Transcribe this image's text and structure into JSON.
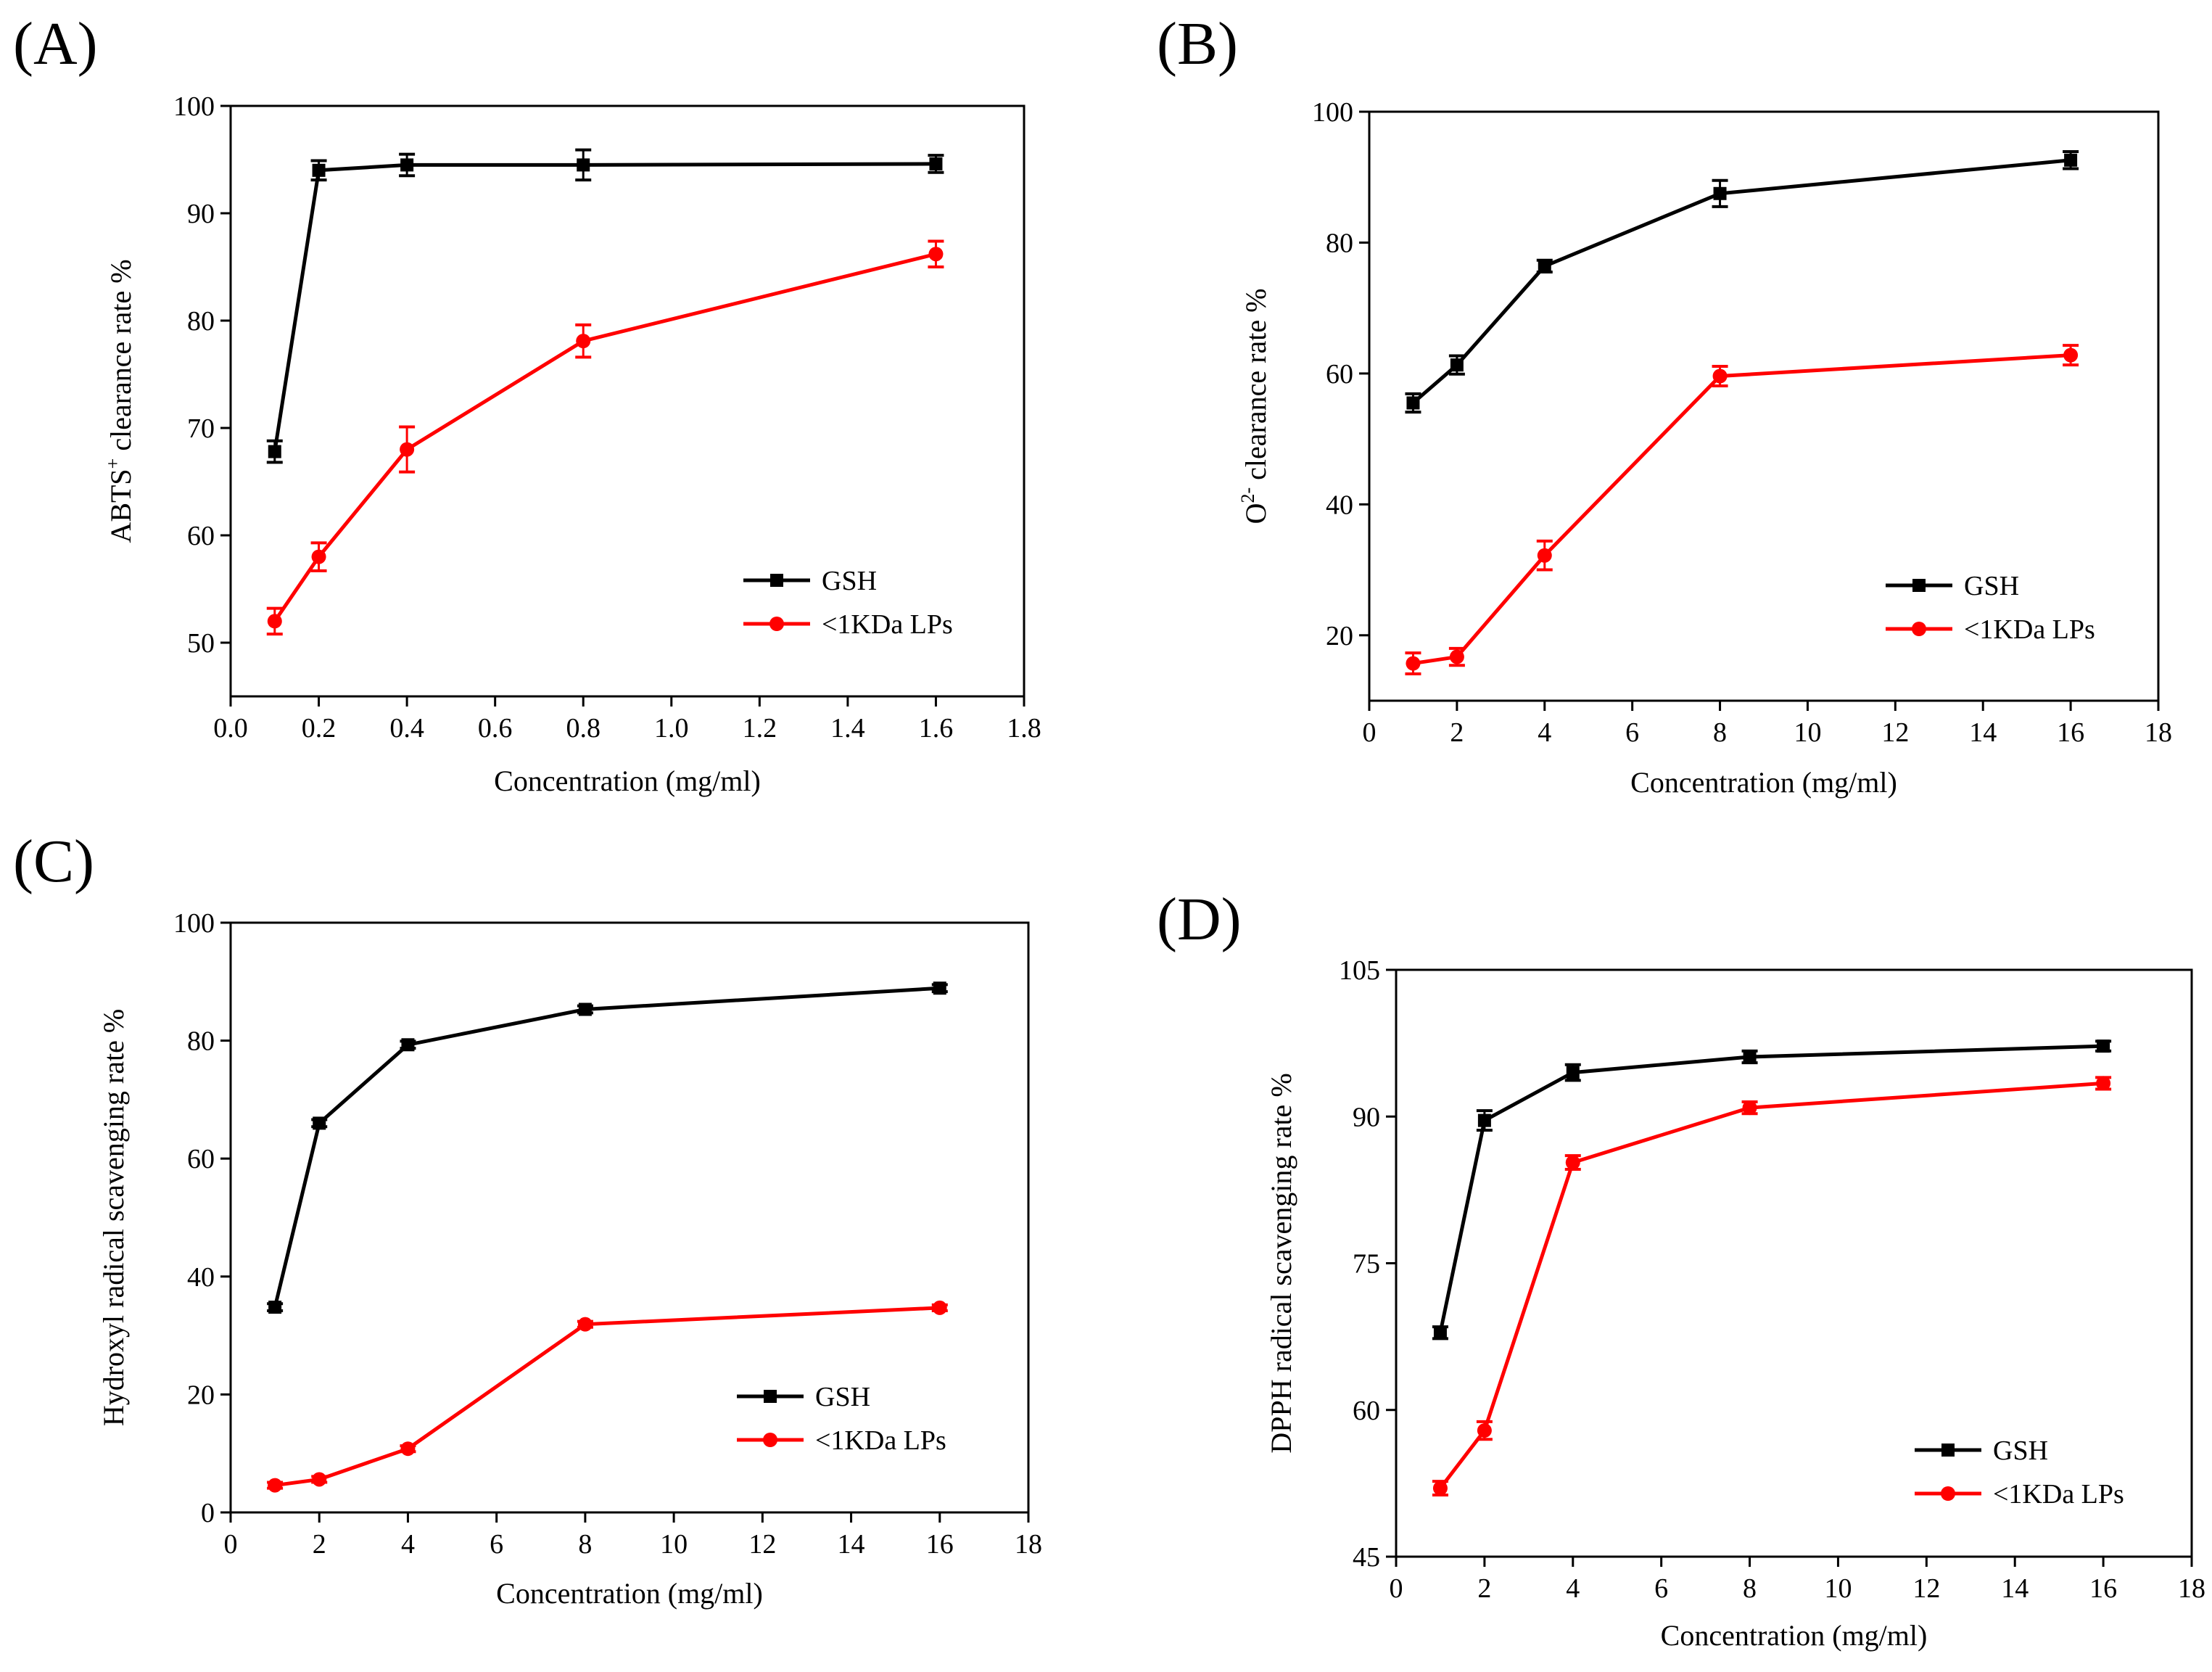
{
  "figure": {
    "colors": {
      "GSH": "#000000",
      "LPs": "#ff0000"
    }
  },
  "chart_data": [
    {
      "id": "A",
      "type": "line",
      "panel_label": "(A)",
      "xlabel": "Concentration (mg/ml)",
      "ylabel_main": "ABTS",
      "ylabel_sup": "+",
      "ylabel_rest": " clearance rate %",
      "xlim": [
        0,
        1.8
      ],
      "ylim": [
        45,
        100
      ],
      "xticks": [
        0,
        0.2,
        0.4,
        0.6,
        0.8,
        1.0,
        1.2,
        1.4,
        1.6,
        1.8
      ],
      "xtick_labels": [
        "0.0",
        "0.2",
        "0.4",
        "0.6",
        "0.8",
        "1.0",
        "1.2",
        "1.4",
        "1.6",
        "1.8"
      ],
      "yticks": [
        50,
        60,
        70,
        80,
        90,
        100
      ],
      "ytick_labels": [
        "50",
        "60",
        "70",
        "80",
        "90",
        "100"
      ],
      "x": [
        0.1,
        0.2,
        0.4,
        0.8,
        1.6
      ],
      "series": [
        {
          "name": "GSH",
          "key": "GSH",
          "values": [
            67.8,
            94.0,
            94.5,
            94.5,
            94.6
          ],
          "errors": [
            1.0,
            0.9,
            1.0,
            1.4,
            0.8
          ]
        },
        {
          "name": "<1KDa LPs",
          "key": "LPs",
          "values": [
            52.0,
            58.0,
            68.0,
            78.1,
            86.2
          ],
          "errors": [
            1.2,
            1.3,
            2.1,
            1.5,
            1.2
          ]
        }
      ]
    },
    {
      "id": "B",
      "type": "line",
      "panel_label": "(B)",
      "xlabel": "Concentration (mg/ml)",
      "ylabel_main": "O",
      "ylabel_sup": "2-",
      "ylabel_rest": " clearance rate %",
      "xlim": [
        0,
        18
      ],
      "ylim": [
        10,
        100
      ],
      "xticks": [
        0,
        2,
        4,
        6,
        8,
        10,
        12,
        14,
        16,
        18
      ],
      "xtick_labels": [
        "0",
        "2",
        "4",
        "6",
        "8",
        "10",
        "12",
        "14",
        "16",
        "18"
      ],
      "yticks": [
        20,
        40,
        60,
        80,
        100
      ],
      "ytick_labels": [
        "20",
        "40",
        "60",
        "80",
        "100"
      ],
      "x": [
        1,
        2,
        4,
        8,
        16
      ],
      "series": [
        {
          "name": "GSH",
          "key": "GSH",
          "values": [
            55.5,
            61.3,
            76.4,
            87.5,
            92.6
          ],
          "errors": [
            1.4,
            1.4,
            0.9,
            2.0,
            1.3
          ]
        },
        {
          "name": "<1KDa LPs",
          "key": "LPs",
          "values": [
            15.7,
            16.7,
            32.2,
            59.6,
            62.8
          ],
          "errors": [
            1.6,
            1.3,
            2.2,
            1.5,
            1.5
          ]
        }
      ]
    },
    {
      "id": "C",
      "type": "line",
      "panel_label": "(C)",
      "xlabel": "Concentration (mg/ml)",
      "ylabel_main": "Hydroxyl radical scavenging rate %",
      "ylabel_sup": "",
      "ylabel_rest": "",
      "xlim": [
        0,
        18
      ],
      "ylim": [
        0,
        100
      ],
      "xticks": [
        0,
        2,
        4,
        6,
        8,
        10,
        12,
        14,
        16,
        18
      ],
      "xtick_labels": [
        "0",
        "2",
        "4",
        "6",
        "8",
        "10",
        "12",
        "14",
        "16",
        "18"
      ],
      "yticks": [
        0,
        20,
        40,
        60,
        80,
        100
      ],
      "ytick_labels": [
        "0",
        "20",
        "40",
        "60",
        "80",
        "100"
      ],
      "x": [
        1,
        2,
        4,
        8,
        16
      ],
      "series": [
        {
          "name": "GSH",
          "key": "GSH",
          "values": [
            34.8,
            66.0,
            79.3,
            85.3,
            88.9
          ],
          "errors": [
            0.6,
            0.6,
            0.6,
            0.6,
            0.6
          ]
        },
        {
          "name": "<1KDa LPs",
          "key": "LPs",
          "values": [
            4.6,
            5.6,
            10.8,
            31.9,
            34.7
          ],
          "errors": [
            0.5,
            0.5,
            0.5,
            0.5,
            0.5
          ]
        }
      ]
    },
    {
      "id": "D",
      "type": "line",
      "panel_label": "(D)",
      "xlabel": "Concentration (mg/ml)",
      "ylabel_main": "DPPH radical scavenging rate %",
      "ylabel_sup": "",
      "ylabel_rest": "",
      "xlim": [
        0,
        18
      ],
      "ylim": [
        45,
        105
      ],
      "xticks": [
        0,
        2,
        4,
        6,
        8,
        10,
        12,
        14,
        16,
        18
      ],
      "xtick_labels": [
        "0",
        "2",
        "4",
        "6",
        "8",
        "10",
        "12",
        "14",
        "16",
        "18"
      ],
      "yticks": [
        45,
        60,
        75,
        90,
        105
      ],
      "ytick_labels": [
        "45",
        "60",
        "75",
        "90",
        "105"
      ],
      "x": [
        1,
        2,
        4,
        8,
        16
      ],
      "series": [
        {
          "name": "GSH",
          "key": "GSH",
          "values": [
            67.9,
            89.6,
            94.5,
            96.1,
            97.2
          ],
          "errors": [
            0.6,
            1.0,
            0.8,
            0.6,
            0.5
          ]
        },
        {
          "name": "<1KDa LPs",
          "key": "LPs",
          "values": [
            52.0,
            57.9,
            85.3,
            90.9,
            93.4
          ],
          "errors": [
            0.7,
            0.9,
            0.7,
            0.6,
            0.6
          ]
        }
      ]
    }
  ]
}
